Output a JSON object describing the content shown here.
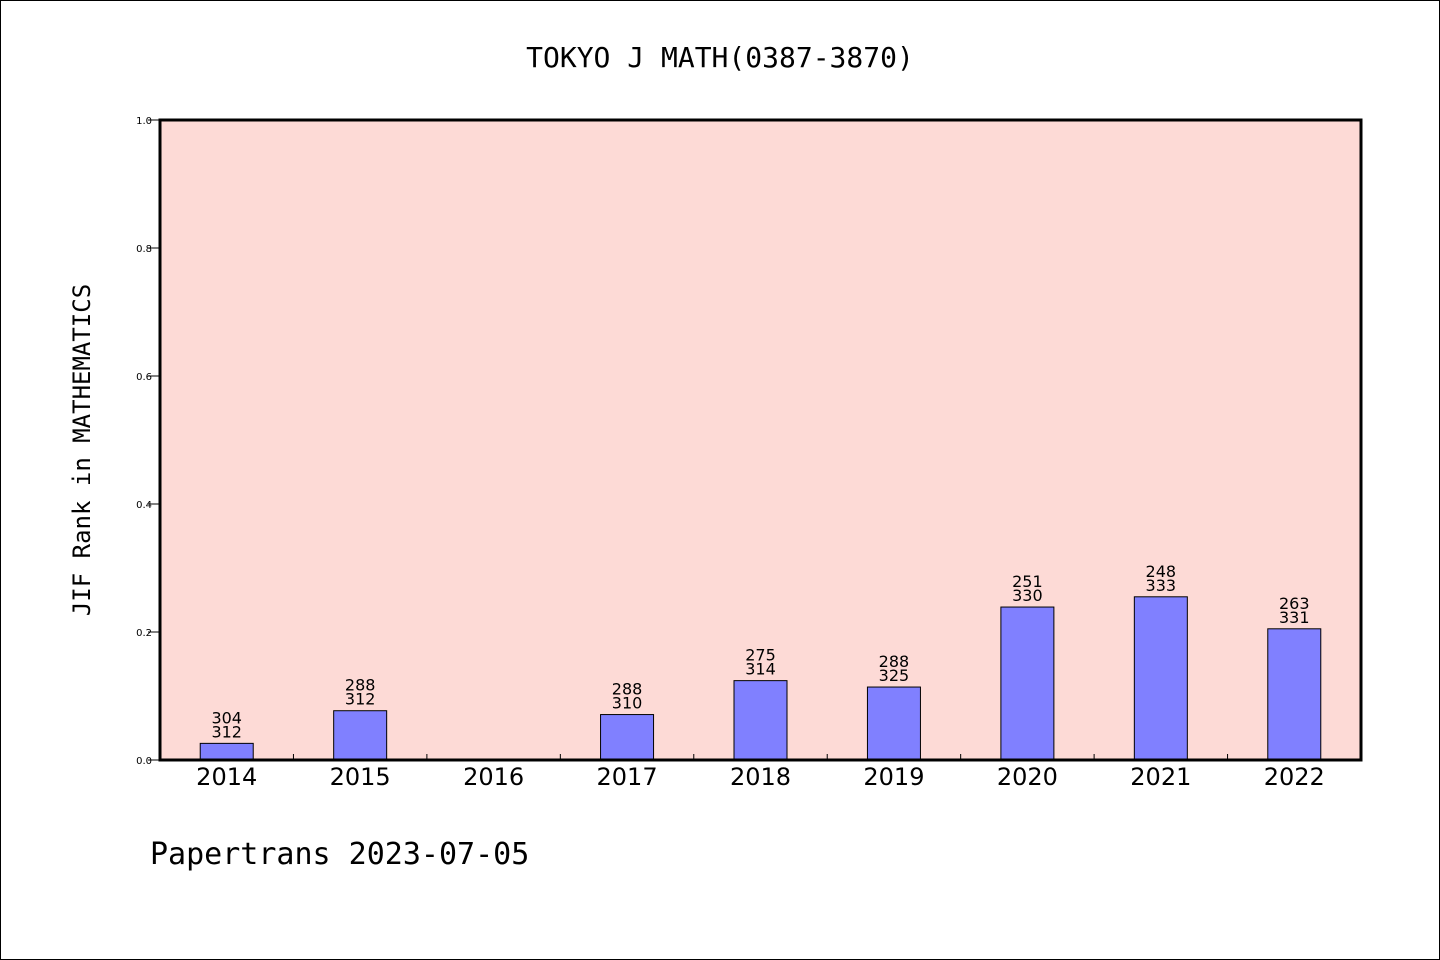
{
  "chart_data": {
    "type": "bar",
    "title": "TOKYO J MATH(0387-3870)",
    "xlabel": "",
    "ylabel": "JIF Rank in MATHEMATICS",
    "ylim": [
      0,
      1.0
    ],
    "yticks": [
      "0.0",
      "0.2",
      "0.4",
      "0.6",
      "0.8",
      "1.0"
    ],
    "categories": [
      "2014",
      "2015",
      "2016",
      "2017",
      "2018",
      "2019",
      "2020",
      "2021",
      "2022"
    ],
    "values": [
      0.026,
      0.077,
      null,
      0.071,
      0.124,
      0.114,
      0.239,
      0.255,
      0.205
    ],
    "ranks": [
      "304",
      "288",
      "",
      "288",
      "275",
      "288",
      "251",
      "248",
      "263"
    ],
    "totals": [
      "312",
      "312",
      "",
      "310",
      "314",
      "325",
      "330",
      "333",
      "331"
    ],
    "grid": false,
    "colors": {
      "bar": "#8080ff",
      "plot_bg": "#fddad6"
    }
  },
  "footer": "Papertrans 2023-07-05"
}
